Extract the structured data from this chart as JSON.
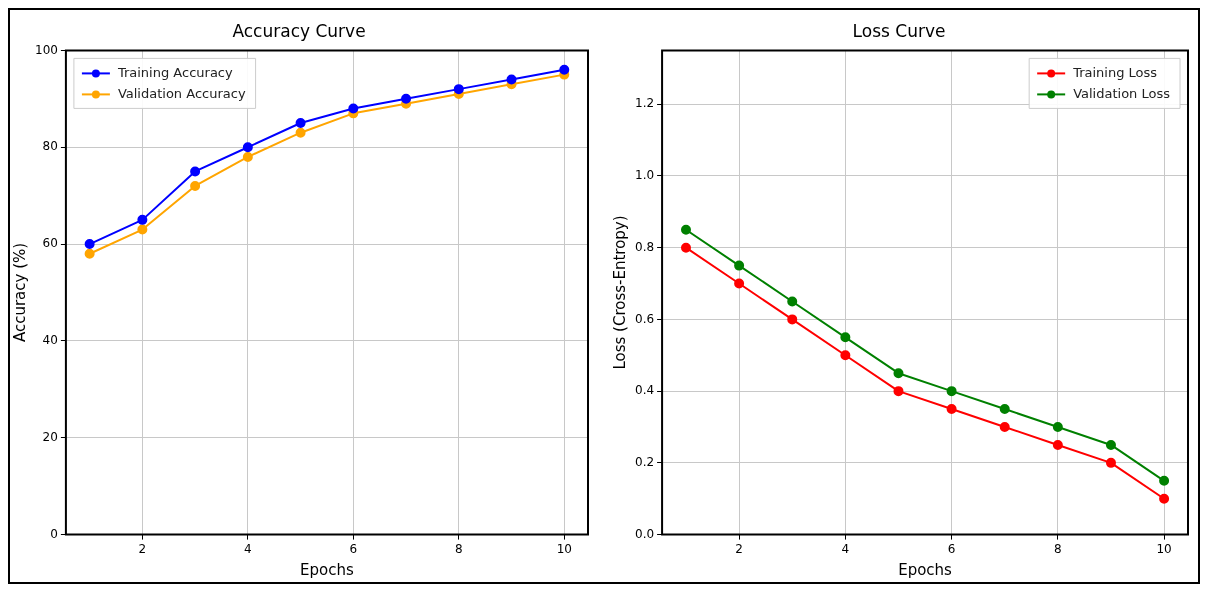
{
  "chart_data": [
    {
      "type": "line",
      "title": "Accuracy Curve",
      "xlabel": "Epochs",
      "ylabel": "Accuracy (%)",
      "x": [
        1,
        2,
        3,
        4,
        5,
        6,
        7,
        8,
        9,
        10
      ],
      "series": [
        {
          "name": "Training Accuracy",
          "color": "#0000ff",
          "values": [
            60,
            65,
            75,
            80,
            85,
            88,
            90,
            92,
            94,
            96
          ]
        },
        {
          "name": "Validation Accuracy",
          "color": "#ffa500",
          "values": [
            58,
            63,
            72,
            78,
            83,
            87,
            89,
            91,
            93,
            95
          ]
        }
      ],
      "xlim": [
        0.55,
        10.45
      ],
      "xticks": [
        2,
        4,
        6,
        8,
        10
      ],
      "ylim": [
        0,
        100
      ],
      "yticks": [
        0,
        20,
        40,
        60,
        80,
        100
      ],
      "grid": true,
      "legend": "top left",
      "marker": "circle",
      "line_style": "solid"
    },
    {
      "type": "line",
      "title": "Loss Curve",
      "xlabel": "Epochs",
      "ylabel": "Loss (Cross-Entropy)",
      "x": [
        1,
        2,
        3,
        4,
        5,
        6,
        7,
        8,
        9,
        10
      ],
      "series": [
        {
          "name": "Training Loss",
          "color": "#ff0000",
          "values": [
            0.8,
            0.7,
            0.6,
            0.5,
            0.4,
            0.35,
            0.3,
            0.25,
            0.2,
            0.1
          ]
        },
        {
          "name": "Validation Loss",
          "color": "#008000",
          "values": [
            0.85,
            0.75,
            0.65,
            0.55,
            0.45,
            0.4,
            0.35,
            0.3,
            0.25,
            0.15
          ]
        }
      ],
      "xlim": [
        0.55,
        10.45
      ],
      "xticks": [
        2,
        4,
        6,
        8,
        10
      ],
      "ylim": [
        0,
        1.35
      ],
      "yticks": [
        {
          "value": 0,
          "label": "0.0"
        },
        0.2,
        0.4,
        0.6,
        0.8,
        {
          "value": 1,
          "label": "1.0"
        },
        1.2
      ],
      "grid": true,
      "legend": "top right",
      "marker": "circle",
      "line_style": "solid"
    }
  ]
}
